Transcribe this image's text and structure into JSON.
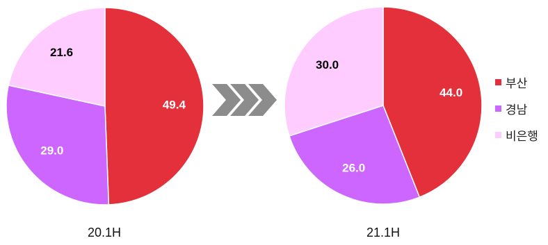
{
  "chart_data": [
    {
      "type": "pie",
      "title": "20.1H",
      "slices": [
        {
          "name": "부산",
          "value": 49.4,
          "label": "49.4",
          "color": "#e3303a",
          "label_color": "#ffffff"
        },
        {
          "name": "경남",
          "value": 29.0,
          "label": "29.0",
          "color": "#cc66ff",
          "label_color": "#ffffff"
        },
        {
          "name": "비은행",
          "value": 21.6,
          "label": "21.6",
          "color": "#ffccff",
          "label_color": "#000000"
        }
      ]
    },
    {
      "type": "pie",
      "title": "21.1H",
      "slices": [
        {
          "name": "부산",
          "value": 44.0,
          "label": "44.0",
          "color": "#e3303a",
          "label_color": "#ffffff"
        },
        {
          "name": "경남",
          "value": 26.0,
          "label": "26.0",
          "color": "#cc66ff",
          "label_color": "#ffffff"
        },
        {
          "name": "비은행",
          "value": 30.0,
          "label": "30.0",
          "color": "#ffccff",
          "label_color": "#000000"
        }
      ]
    }
  ],
  "legend": [
    {
      "label": "부산",
      "color": "#e3303a"
    },
    {
      "label": "경남",
      "color": "#cc66ff"
    },
    {
      "label": "비은행",
      "color": "#ffccff"
    }
  ],
  "arrow": {
    "icon": "triple-chevron-right-icon",
    "color": "#8c8c8c"
  }
}
